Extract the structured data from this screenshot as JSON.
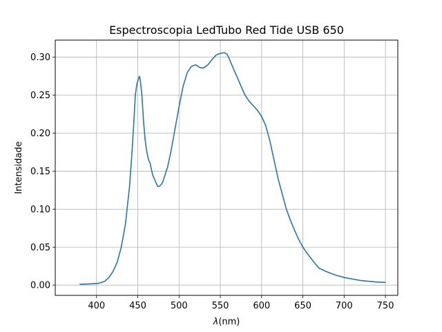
{
  "chart_data": {
    "type": "line",
    "title": "Espectroscopia LedTubo Red Tide USB 650",
    "xlabel_symbol": "λ",
    "xlabel_unit": "(nm)",
    "ylabel": "Intensidade",
    "xlim": [
      350,
      765
    ],
    "ylim": [
      -0.0135,
      0.3225
    ],
    "xticks": [
      400,
      450,
      500,
      550,
      600,
      650,
      700,
      750
    ],
    "yticks": [
      0.0,
      0.05,
      0.1,
      0.15,
      0.2,
      0.25,
      0.3
    ],
    "ytick_labels": [
      "0.00",
      "0.05",
      "0.10",
      "0.15",
      "0.20",
      "0.25",
      "0.30"
    ],
    "grid": true,
    "color": "#1f77b4",
    "series": [
      {
        "x": [
          380,
          390,
          400,
          405,
          410,
          415,
          420,
          425,
          430,
          435,
          440,
          443,
          445,
          447,
          449,
          451,
          452,
          453,
          455,
          457,
          459,
          461,
          463,
          465,
          467,
          468,
          470,
          472,
          474,
          476,
          478,
          480,
          483,
          486,
          490,
          495,
          500,
          505,
          510,
          515,
          520,
          523,
          526,
          530,
          535,
          540,
          545,
          550,
          555,
          558,
          560,
          565,
          570,
          575,
          580,
          585,
          590,
          595,
          600,
          605,
          610,
          615,
          620,
          625,
          630,
          635,
          640,
          645,
          650,
          655,
          660,
          665,
          670,
          680,
          690,
          700,
          710,
          720,
          730,
          740,
          750
        ],
        "y": [
          0.001,
          0.0015,
          0.002,
          0.003,
          0.005,
          0.01,
          0.018,
          0.03,
          0.05,
          0.08,
          0.13,
          0.175,
          0.21,
          0.25,
          0.265,
          0.272,
          0.275,
          0.27,
          0.25,
          0.215,
          0.19,
          0.175,
          0.165,
          0.16,
          0.15,
          0.145,
          0.14,
          0.135,
          0.13,
          0.13,
          0.132,
          0.135,
          0.145,
          0.155,
          0.175,
          0.205,
          0.235,
          0.262,
          0.28,
          0.288,
          0.29,
          0.288,
          0.286,
          0.286,
          0.29,
          0.297,
          0.303,
          0.305,
          0.306,
          0.304,
          0.3,
          0.287,
          0.275,
          0.262,
          0.25,
          0.242,
          0.236,
          0.23,
          0.222,
          0.21,
          0.19,
          0.165,
          0.14,
          0.12,
          0.1,
          0.085,
          0.072,
          0.06,
          0.05,
          0.042,
          0.035,
          0.028,
          0.022,
          0.017,
          0.013,
          0.01,
          0.008,
          0.006,
          0.005,
          0.004,
          0.0035
        ]
      }
    ]
  }
}
